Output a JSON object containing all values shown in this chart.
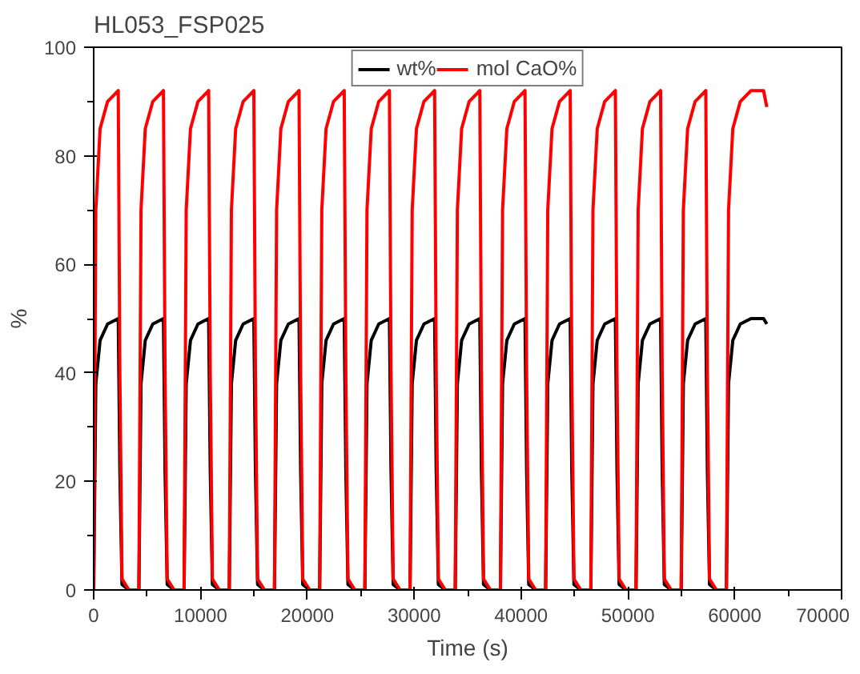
{
  "chart_data": {
    "type": "line",
    "title": "HL053_FSP025",
    "xlabel": "Time (s)",
    "ylabel": "%",
    "xlim": [
      0,
      70000
    ],
    "xticks": [
      0,
      10000,
      20000,
      30000,
      40000,
      50000,
      60000,
      70000
    ],
    "ylim": [
      0,
      100
    ],
    "yticks": [
      0,
      20,
      40,
      60,
      80,
      100
    ],
    "grid": false,
    "legend": "top",
    "marker": "none",
    "line_style": "solid",
    "x": [
      0,
      200,
      600,
      1300,
      2300,
      2450,
      2650,
      3300,
      4230,
      4430,
      4830,
      5530,
      6530,
      6680,
      6880,
      7530,
      8460,
      8660,
      9060,
      9760,
      10760,
      10910,
      11110,
      11760,
      12690,
      12890,
      13290,
      13990,
      14990,
      15140,
      15340,
      15990,
      16920,
      17120,
      17520,
      18220,
      19220,
      19370,
      19570,
      20220,
      21150,
      21350,
      21750,
      22450,
      23450,
      23600,
      23800,
      24450,
      25380,
      25580,
      25980,
      26680,
      27680,
      27830,
      28030,
      28680,
      29610,
      29810,
      30210,
      30910,
      31910,
      32060,
      32260,
      32910,
      33840,
      34040,
      34440,
      35140,
      36140,
      36290,
      36490,
      37140,
      38070,
      38270,
      38670,
      39370,
      40370,
      40520,
      40720,
      41370,
      42300,
      42500,
      42900,
      43600,
      44600,
      44750,
      44950,
      45600,
      46530,
      46730,
      47130,
      47830,
      48830,
      48980,
      49180,
      49830,
      50760,
      50960,
      51360,
      52060,
      53060,
      53210,
      53410,
      54060,
      54990,
      55190,
      55590,
      56290,
      57290,
      57440,
      57640,
      58290,
      59220,
      59420,
      59820,
      60520,
      61520,
      62700,
      63000
    ],
    "series": [
      {
        "name": "wt%",
        "color": "#000000",
        "values": [
          0,
          38,
          46,
          49,
          50,
          22,
          1,
          0,
          0,
          38,
          46,
          49,
          50,
          22,
          1,
          0,
          0,
          38,
          46,
          49,
          50,
          22,
          1,
          0,
          0,
          38,
          46,
          49,
          50,
          22,
          1,
          0,
          0,
          38,
          46,
          49,
          50,
          22,
          1,
          0,
          0,
          38,
          46,
          49,
          50,
          22,
          1,
          0,
          0,
          38,
          46,
          49,
          50,
          22,
          1,
          0,
          0,
          38,
          46,
          49,
          50,
          22,
          1,
          0,
          0,
          38,
          46,
          49,
          50,
          22,
          1,
          0,
          0,
          38,
          46,
          49,
          50,
          22,
          1,
          0,
          0,
          38,
          46,
          49,
          50,
          22,
          1,
          0,
          0,
          38,
          46,
          49,
          50,
          22,
          1,
          0,
          0,
          38,
          46,
          49,
          50,
          22,
          1,
          0,
          0,
          38,
          46,
          49,
          50,
          22,
          1,
          0,
          0,
          38,
          46,
          49,
          50,
          50,
          49
        ]
      },
      {
        "name": "mol CaO%",
        "color": "#ff0000",
        "values": [
          0,
          70,
          85,
          90,
          92,
          40,
          2,
          0,
          0,
          70,
          85,
          90,
          92,
          40,
          2,
          0,
          0,
          70,
          85,
          90,
          92,
          40,
          2,
          0,
          0,
          70,
          85,
          90,
          92,
          40,
          2,
          0,
          0,
          70,
          85,
          90,
          92,
          40,
          2,
          0,
          0,
          70,
          85,
          90,
          92,
          40,
          2,
          0,
          0,
          70,
          85,
          90,
          92,
          40,
          2,
          0,
          0,
          70,
          85,
          90,
          92,
          40,
          2,
          0,
          0,
          70,
          85,
          90,
          92,
          40,
          2,
          0,
          0,
          70,
          85,
          90,
          92,
          40,
          2,
          0,
          0,
          70,
          85,
          90,
          92,
          40,
          2,
          0,
          0,
          70,
          85,
          90,
          92,
          40,
          2,
          0,
          0,
          70,
          85,
          90,
          92,
          40,
          2,
          0,
          0,
          70,
          85,
          90,
          92,
          40,
          2,
          0,
          0,
          70,
          85,
          90,
          92,
          92,
          89
        ]
      }
    ]
  }
}
